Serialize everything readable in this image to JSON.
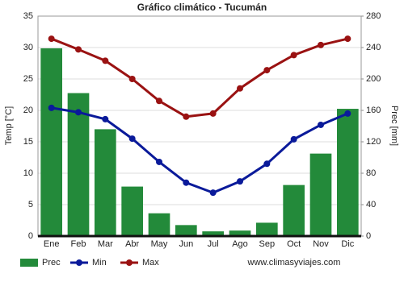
{
  "chart_data": {
    "type": "bar_line",
    "title": "Gráfico climático - Tucumán",
    "y_label": "Temp [°C]",
    "y2_label": "Prec [mm]",
    "source": "www.climasyviajes.com",
    "categories": [
      "Ene",
      "Feb",
      "Mar",
      "Abr",
      "May",
      "Jun",
      "Jul",
      "Ago",
      "Sep",
      "Oct",
      "Nov",
      "Dic"
    ],
    "series": [
      {
        "name": "Prec",
        "kind": "bar",
        "axis": "y2",
        "color": "#238a3a",
        "values": [
          239,
          182,
          136,
          63,
          29,
          14,
          6,
          7,
          17,
          65,
          105,
          162
        ]
      },
      {
        "name": "Min",
        "kind": "line",
        "axis": "y",
        "color": "#0a1a9a",
        "values": [
          20.4,
          19.7,
          18.6,
          15.5,
          11.8,
          8.5,
          6.9,
          8.7,
          11.5,
          15.4,
          17.7,
          19.5
        ]
      },
      {
        "name": "Max",
        "kind": "line",
        "axis": "y",
        "color": "#9a1212",
        "values": [
          31.4,
          29.7,
          27.9,
          25,
          21.5,
          19,
          19.5,
          23.5,
          26.4,
          28.8,
          30.4,
          31.4
        ]
      }
    ],
    "ylim": [
      0,
      35
    ],
    "yticks": [
      0,
      5,
      10,
      15,
      20,
      25,
      30,
      35
    ],
    "y2lim": [
      0,
      280
    ],
    "y2ticks": [
      0,
      40,
      80,
      120,
      160,
      200,
      240,
      280
    ],
    "grid": true
  }
}
